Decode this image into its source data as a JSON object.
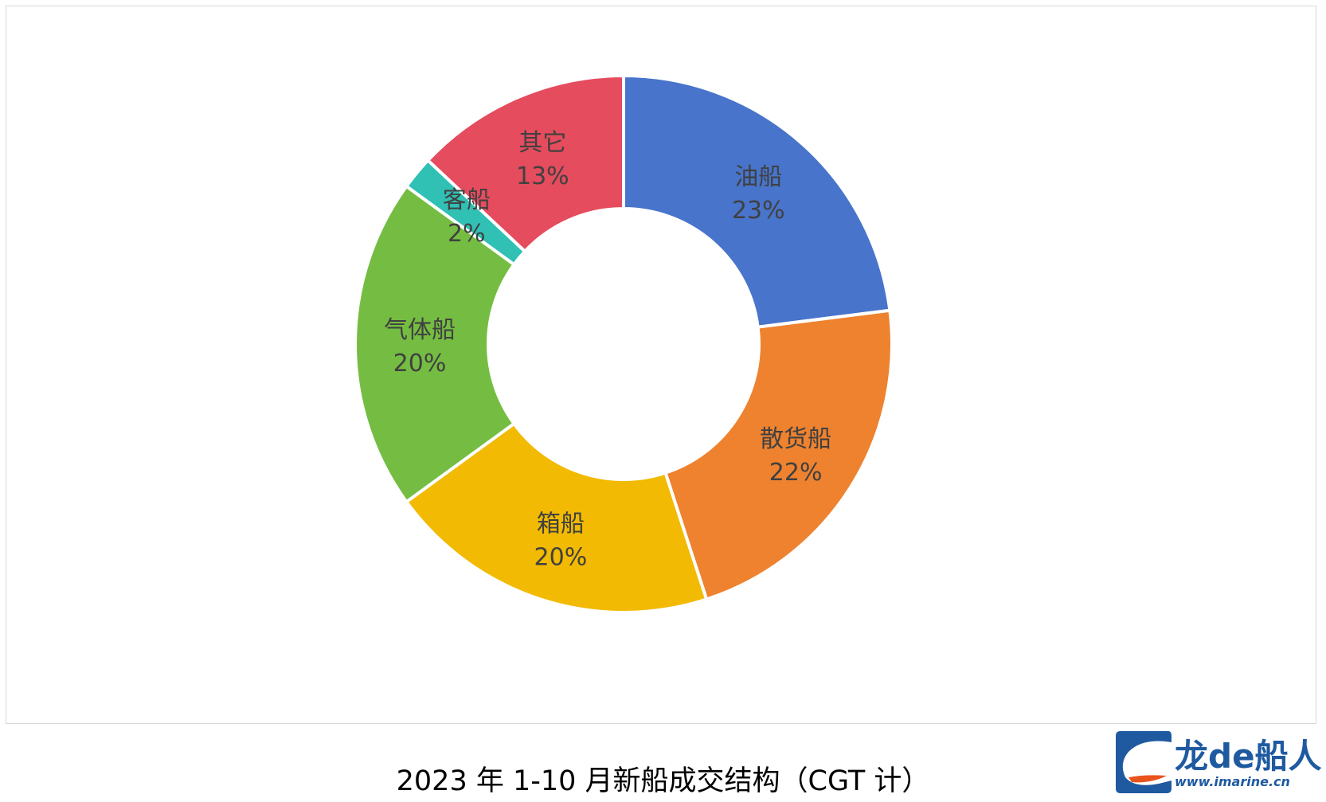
{
  "chart_data": {
    "type": "pie",
    "style": "donut",
    "title": "2023 年 1-10 月新船成交结构（CGT 计）",
    "categories": [
      "油船",
      "散货船",
      "箱船",
      "气体船",
      "客船",
      "其它"
    ],
    "values": [
      23,
      22,
      20,
      20,
      2,
      13
    ],
    "value_labels": [
      "23%",
      "22%",
      "20%",
      "20%",
      "2%",
      "13%"
    ],
    "colors": [
      "#4874cb",
      "#ee822f",
      "#f2ba02",
      "#75bd42",
      "#30c0b4",
      "#e54c5e"
    ],
    "legend": "none"
  },
  "watermark": {
    "name": "龙de船人",
    "url": "www.imarine.cn",
    "colors": [
      "#1f5aa0",
      "#e8541c"
    ]
  }
}
